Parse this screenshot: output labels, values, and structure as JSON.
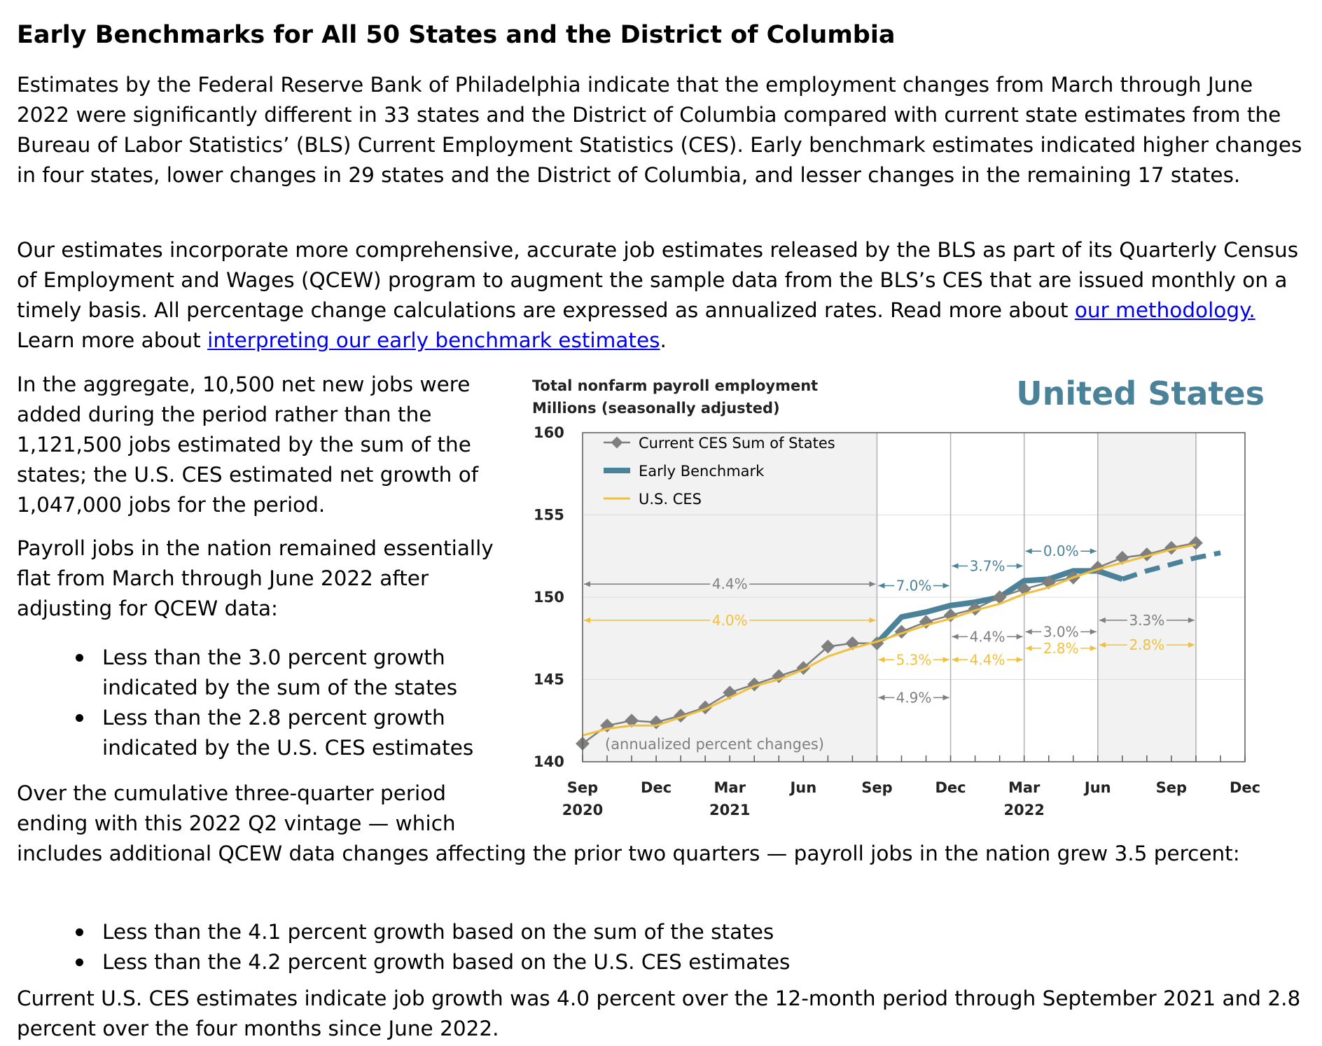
{
  "title": "Early Benchmarks for All 50 States and the District of Columbia",
  "intro": {
    "p1": "Estimates by the Federal Reserve Bank of Philadelphia indicate that the employment changes from March through June 2022 were significantly different in 33 states and the District of Columbia compared with current state estimates from the Bureau of Labor Statistics’ (BLS) Current Employment Statistics (CES). Early benchmark estimates indicated higher changes in four states, lower changes in 29 states and the District of Columbia, and lesser changes in the remaining 17 states.",
    "p2_text": "Our estimates incorporate more comprehensive, accurate job estimates released by the BLS as part of its Quarterly Census of Employment and Wages (QCEW) program to augment the sample data from the BLS’s CES that are issued monthly on a timely basis. All percentage change calculations are expressed as annualized rates. Read more about ",
    "link_methodology": "our methodology.",
    "p2_mid": " Learn more about ",
    "link_interpreting": "interpreting our early benchmark estimates",
    "p2_end": "."
  },
  "aggregate": "In the aggregate, 10,500 net new jobs were added during the period rather than the 1,121,500 jobs estimated by the sum of the states; the U.S. CES estimated net growth of 1,047,000 jobs for the period.",
  "payroll_flat": "Payroll jobs in the nation remained essentially flat from March through June 2022 after adjusting for QCEW data:",
  "bullets1": [
    "Less than the 3.0 percent growth indicated by the sum of the states",
    "Less than the 2.8 percent growth indicated by the U.S. CES estimates"
  ],
  "cumulative_a": "Over the cumulative three-quarter period ending with this 2022 Q2 vintage — which",
  "cumulative_b": "includes additional QCEW data changes affecting the prior two quarters — payroll jobs in the nation grew 3.5 percent:",
  "bullets2": [
    "Less than the 4.1 percent growth based on the sum of the states",
    "Less than the 4.2 percent growth based on the U.S. CES estimates"
  ],
  "closing": "Current U.S. CES estimates indicate job growth was 4.0 percent over the 12-month period through September 2021 and 2.8 percent over the four months since June 2022.",
  "chart_data": {
    "type": "line",
    "title": "United States",
    "subtitle_line1": "Total nonfarm payroll employment",
    "subtitle_line2": "Millions (seasonally adjusted)",
    "note": "(annualized percent changes)",
    "ylim": [
      140,
      160
    ],
    "yticks": [
      140,
      145,
      150,
      155,
      160
    ],
    "x_months": [
      "2020-09",
      "2020-10",
      "2020-11",
      "2020-12",
      "2021-01",
      "2021-02",
      "2021-03",
      "2021-04",
      "2021-05",
      "2021-06",
      "2021-07",
      "2021-08",
      "2021-09",
      "2021-10",
      "2021-11",
      "2021-12",
      "2022-01",
      "2022-02",
      "2022-03",
      "2022-04",
      "2022-05",
      "2022-06",
      "2022-07",
      "2022-08",
      "2022-09",
      "2022-10",
      "2022-11",
      "2022-12"
    ],
    "xtick_labels": [
      {
        "month": "Sep",
        "year": "2020"
      },
      {
        "month": "Dec",
        "year": ""
      },
      {
        "month": "Mar",
        "year": "2021"
      },
      {
        "month": "Jun",
        "year": ""
      },
      {
        "month": "Sep",
        "year": ""
      },
      {
        "month": "Dec",
        "year": ""
      },
      {
        "month": "Mar",
        "year": "2022"
      },
      {
        "month": "Jun",
        "year": ""
      },
      {
        "month": "Sep",
        "year": ""
      },
      {
        "month": "Dec",
        "year": ""
      }
    ],
    "legend": [
      "Current CES Sum of States",
      "Early Benchmark",
      "U.S. CES"
    ],
    "colors": {
      "sum_states": "#7f7f7f",
      "benchmark": "#4a8299",
      "us_ces": "#f2bf3b",
      "shade": "#f2f2f2"
    },
    "series": [
      {
        "name": "Current CES Sum of States",
        "start": "2020-09",
        "values": [
          141.1,
          142.2,
          142.5,
          142.4,
          142.8,
          143.3,
          144.2,
          144.7,
          145.2,
          145.7,
          147.0,
          147.2,
          147.2,
          147.9,
          148.5,
          148.9,
          149.3,
          150.0,
          150.5,
          150.9,
          151.2,
          151.8,
          152.4,
          152.6,
          153.0,
          153.3
        ]
      },
      {
        "name": "Early Benchmark",
        "start": "2021-09",
        "values": [
          147.2,
          148.8,
          149.1,
          149.5,
          149.7,
          150.0,
          151.0,
          151.1,
          151.6,
          151.6,
          151.1
        ],
        "projection": [
          151.1,
          151.6,
          152.0,
          152.4,
          152.7
        ]
      },
      {
        "name": "U.S. CES",
        "start": "2020-09",
        "values": [
          141.6,
          142.0,
          142.2,
          142.2,
          142.7,
          143.2,
          143.9,
          144.6,
          145.0,
          145.6,
          146.4,
          146.9,
          147.3,
          147.8,
          148.3,
          148.7,
          149.2,
          149.6,
          150.2,
          150.6,
          151.2,
          151.7,
          152.1,
          152.5,
          152.9,
          153.2
        ]
      }
    ],
    "annotations": [
      {
        "label": "4.4%",
        "color": "#7f7f7f",
        "from": "2020-09",
        "to": "2021-09",
        "y": 150.8
      },
      {
        "label": "4.0%",
        "color": "#f2bf3b",
        "from": "2020-09",
        "to": "2021-09",
        "y": 148.6
      },
      {
        "label": "7.0%",
        "color": "#4a8299",
        "from": "2021-09",
        "to": "2021-12",
        "y": 150.7
      },
      {
        "label": "3.7%",
        "color": "#4a8299",
        "from": "2021-12",
        "to": "2022-03",
        "y": 151.9
      },
      {
        "label": "0.0%",
        "color": "#4a8299",
        "from": "2022-03",
        "to": "2022-06",
        "y": 152.8
      },
      {
        "label": "4.4%",
        "color": "#7f7f7f",
        "from": "2021-12",
        "to": "2022-03",
        "y": 147.6
      },
      {
        "label": "3.0%",
        "color": "#7f7f7f",
        "from": "2022-03",
        "to": "2022-06",
        "y": 147.9
      },
      {
        "label": "3.3%",
        "color": "#7f7f7f",
        "from": "2022-06",
        "to": "2022-10",
        "y": 148.6
      },
      {
        "label": "5.3%",
        "color": "#f2bf3b",
        "from": "2021-09",
        "to": "2021-12",
        "y": 146.2
      },
      {
        "label": "4.4%",
        "color": "#f2bf3b",
        "from": "2021-12",
        "to": "2022-03",
        "y": 146.2
      },
      {
        "label": "2.8%",
        "color": "#f2bf3b",
        "from": "2022-03",
        "to": "2022-06",
        "y": 146.9
      },
      {
        "label": "2.8%",
        "color": "#f2bf3b",
        "from": "2022-06",
        "to": "2022-10",
        "y": 147.1
      },
      {
        "label": "4.9%",
        "color": "#7f7f7f",
        "from": "2021-09",
        "to": "2021-12",
        "y": 143.9
      }
    ],
    "shaded_ranges": [
      [
        "2020-09",
        "2021-09"
      ],
      [
        "2022-06",
        "2022-10"
      ]
    ],
    "vlines": [
      "2021-09",
      "2021-12",
      "2022-03",
      "2022-06",
      "2022-10"
    ]
  }
}
